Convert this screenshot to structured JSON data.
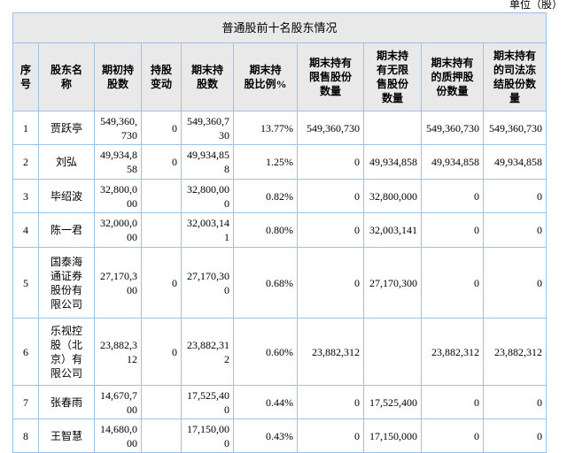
{
  "page": {
    "unit_label": "单位（股）"
  },
  "table": {
    "title": "普通股前十名股东情况",
    "headers": [
      "序\n号",
      "股东名\n称",
      "期初持\n股数",
      "持股\n变动",
      "期末持\n股数",
      "期末持\n股比例%",
      "期末持有\n限售股份\n数量",
      "期末持\n有无限\n售股份\n数量",
      "期末持有\n的质押股\n份数量",
      "期末持有\n的司法冻\n结股份数\n量"
    ],
    "rows": [
      {
        "no": "1",
        "name": "贾跃亭",
        "initial": "549,360,730",
        "change": "0",
        "final": "549,360,730",
        "ratio": "13.77%",
        "restricted": "549,360,730",
        "unrestricted": "",
        "pledged": "549,360,730",
        "frozen": "549,360,730"
      },
      {
        "no": "2",
        "name": "刘弘",
        "initial": "49,934,858",
        "change": "0",
        "final": "49,934,858",
        "ratio": "1.25%",
        "restricted": "0",
        "unrestricted": "49,934,858",
        "pledged": "49,934,858",
        "frozen": "49,934,858"
      },
      {
        "no": "3",
        "name": "毕绍波",
        "initial": "32,800,000",
        "change": "",
        "final": "32,800,000",
        "ratio": "0.82%",
        "restricted": "0",
        "unrestricted": "32,800,000",
        "pledged": "0",
        "frozen": "0"
      },
      {
        "no": "4",
        "name": "陈一君",
        "initial": "32,000,000",
        "change": "",
        "final": "32,003,141",
        "ratio": "0.80%",
        "restricted": "0",
        "unrestricted": "32,003,141",
        "pledged": "0",
        "frozen": "0"
      },
      {
        "no": "5",
        "name": "国泰海\n通证券\n股份有\n限公司",
        "initial": "27,170,300",
        "change": "0",
        "final": "27,170,300",
        "ratio": "0.68%",
        "restricted": "0",
        "unrestricted": "27,170,300",
        "pledged": "0",
        "frozen": "0"
      },
      {
        "no": "6",
        "name": "乐视控\n股（北\n京）有\n限公司",
        "initial": "23,882,312",
        "change": "0",
        "final": "23,882,312",
        "ratio": "0.60%",
        "restricted": "23,882,312",
        "unrestricted": "",
        "pledged": "23,882,312",
        "frozen": "23,882,312"
      },
      {
        "no": "7",
        "name": "张春雨",
        "initial": "14,670,700",
        "change": "",
        "final": "17,525,400",
        "ratio": "0.44%",
        "restricted": "0",
        "unrestricted": "17,525,400",
        "pledged": "0",
        "frozen": "0"
      },
      {
        "no": "8",
        "name": "王智慧",
        "initial": "14,680,000",
        "change": "",
        "final": "17,150,000",
        "ratio": "0.43%",
        "restricted": "0",
        "unrestricted": "17,150,000",
        "pledged": "0",
        "frozen": "0"
      }
    ]
  }
}
